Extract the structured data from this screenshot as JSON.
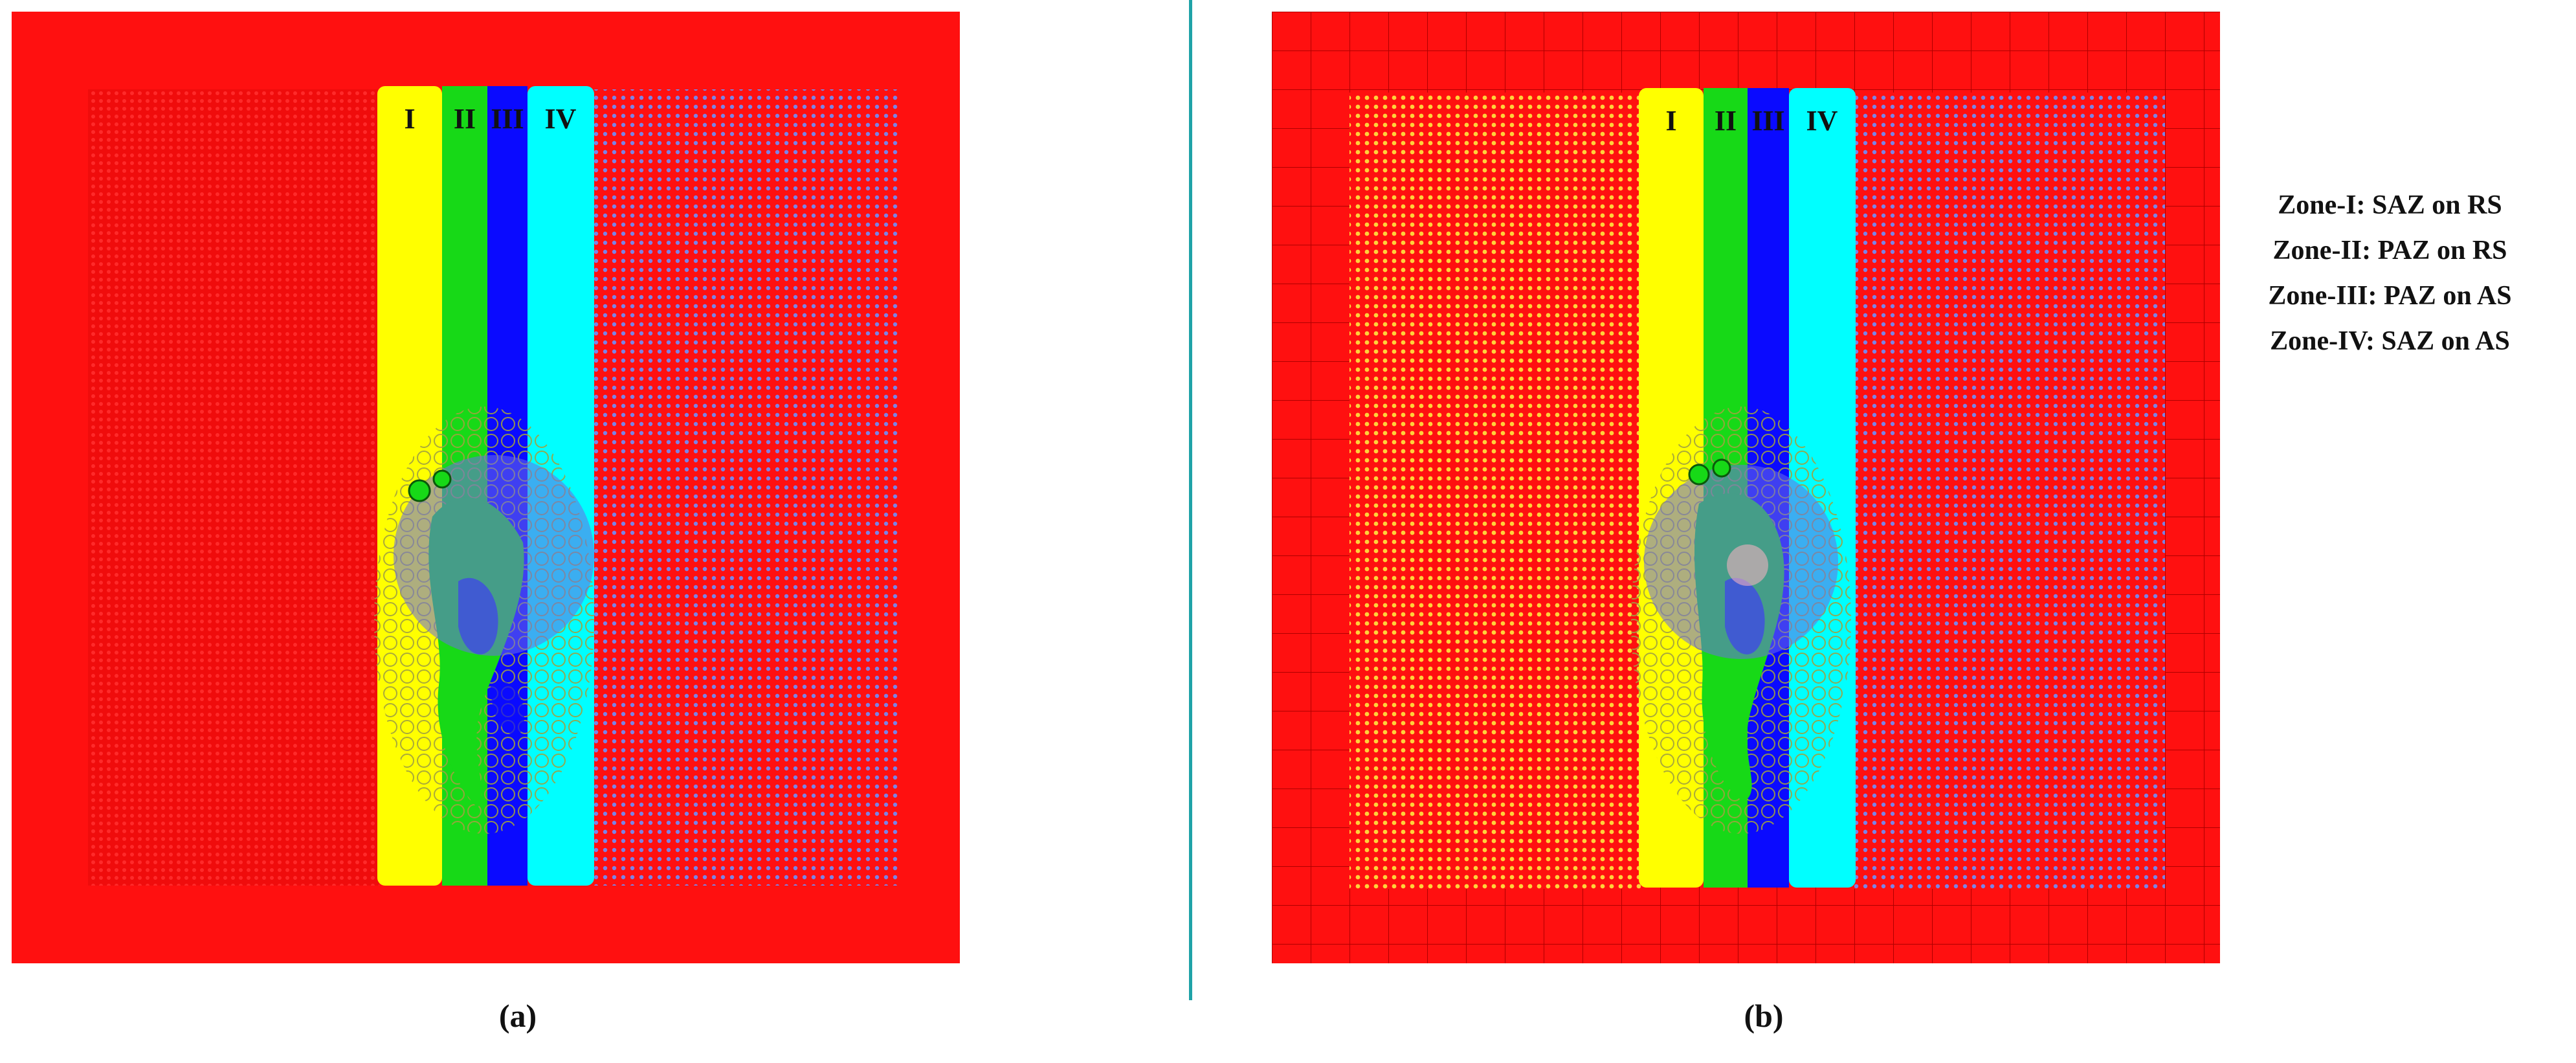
{
  "panels": [
    {
      "id": "a",
      "caption": "(a)",
      "zone_labels": [
        "I",
        "II",
        "III",
        "IV"
      ]
    },
    {
      "id": "b",
      "caption": "(b)",
      "zone_labels": [
        "I",
        "II",
        "III",
        "IV"
      ]
    }
  ],
  "legend": [
    "Zone-I: SAZ on RS",
    "Zone-II: PAZ on RS",
    "Zone-III: PAZ on AS",
    "Zone-IV: SAZ on AS"
  ],
  "colors": {
    "background_plate": "#ff1010",
    "zone_I": "#ffff00",
    "zone_II": "#17d917",
    "zone_III": "#0a0aff",
    "zone_IV": "#00ffff",
    "divider": "#1fa3a8",
    "workpiece_dots_left": "#ffd23a",
    "workpiece_dots_right": "#7c83e6"
  }
}
